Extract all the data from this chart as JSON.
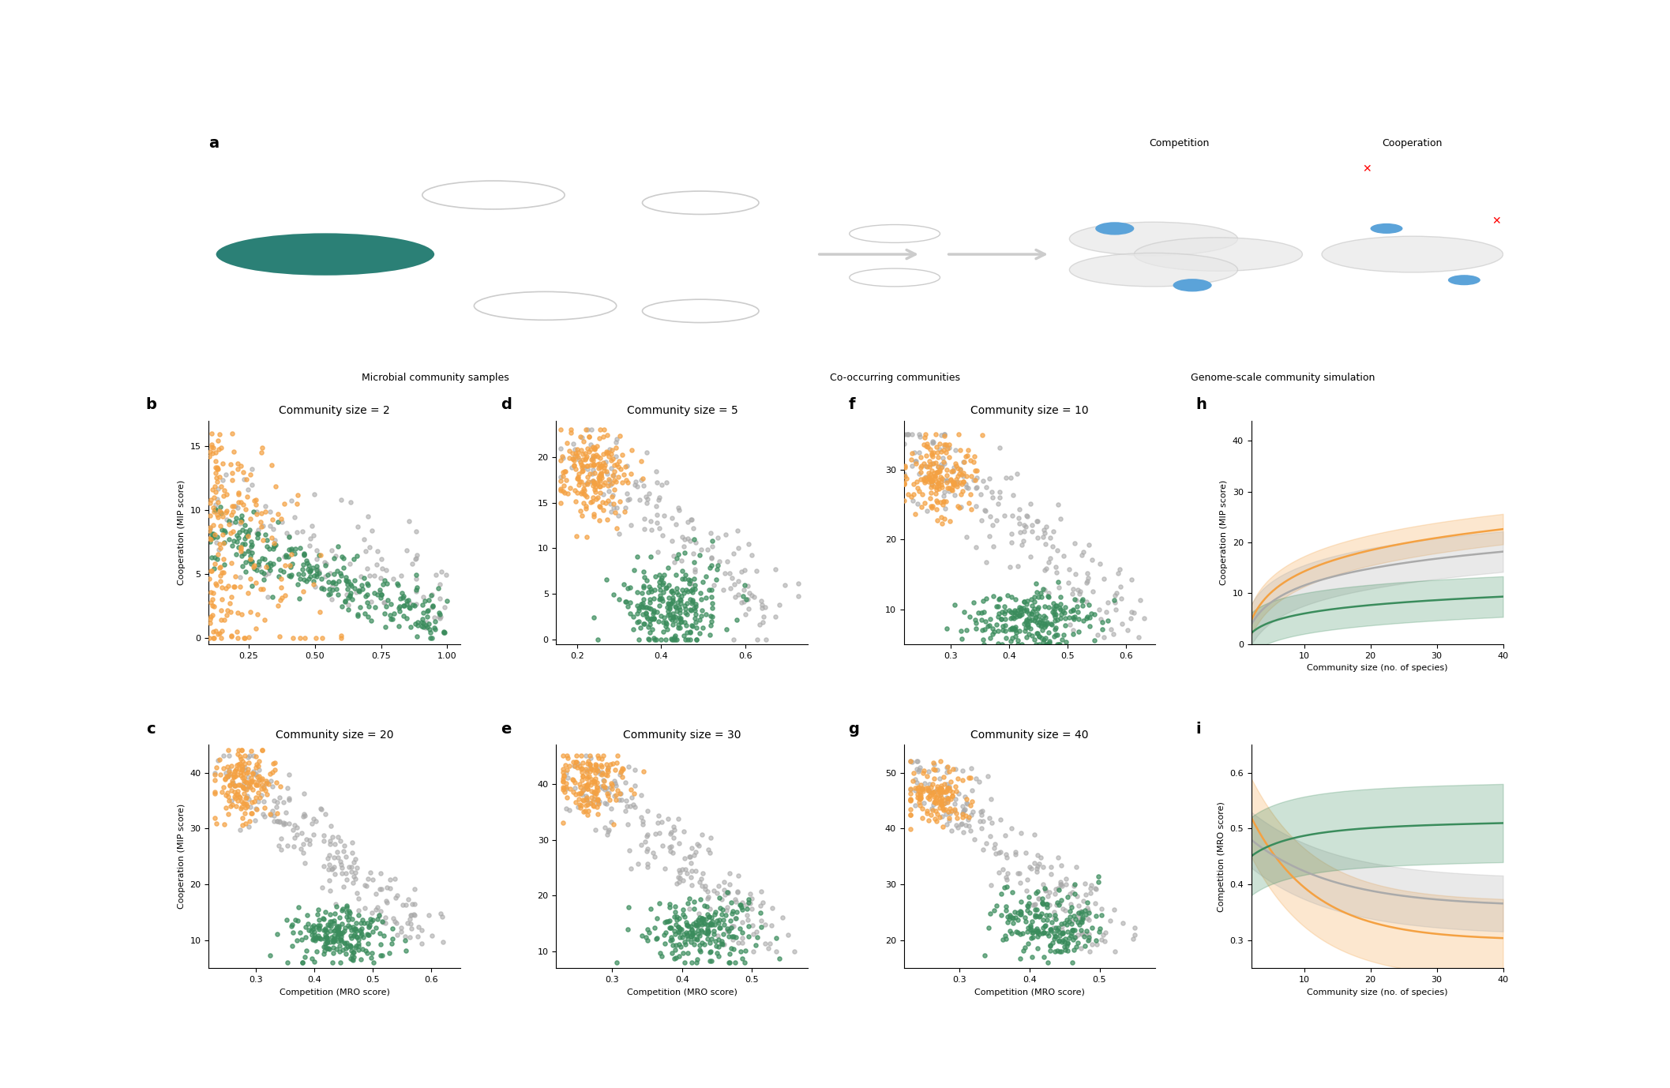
{
  "colors": {
    "orange": "#F4A142",
    "green": "#3A8C5C",
    "gray": "#AAAAAA",
    "light_orange": "#F4A142",
    "light_green": "#7BBF96",
    "teal": "#2B8076"
  },
  "panel_b": {
    "title": "Community size = 2",
    "xlabel": "Competition (MRO score)",
    "ylabel": "Cooperation (MIP score)",
    "xlim": [
      0.1,
      1.05
    ],
    "ylim": [
      -0.5,
      17
    ],
    "xticks": [
      0.25,
      0.5,
      0.75,
      1.0
    ],
    "yticks": [
      0,
      5,
      10,
      15
    ]
  },
  "panel_c": {
    "title": "Community size = 20",
    "xlabel": "Competition (MRO score)",
    "ylabel": "Cooperation (MIP score)",
    "xlim": [
      0.22,
      0.65
    ],
    "ylim": [
      5,
      45
    ],
    "xticks": [
      0.3,
      0.4,
      0.5,
      0.6
    ],
    "yticks": [
      10,
      20,
      30,
      40
    ]
  },
  "panel_d": {
    "title": "Community size = 5",
    "xlabel": "Competition (MRO score)",
    "ylabel": "Cooperation (MIP score)",
    "xlim": [
      0.15,
      0.75
    ],
    "ylim": [
      -0.5,
      24
    ],
    "xticks": [
      0.2,
      0.4,
      0.6
    ],
    "yticks": [
      0,
      5,
      10,
      15,
      20
    ]
  },
  "panel_e": {
    "title": "Community size = 30",
    "xlabel": "Competition (MRO score)",
    "ylabel": "Cooperation (MIP score)",
    "xlim": [
      0.22,
      0.58
    ],
    "ylim": [
      7,
      47
    ],
    "xticks": [
      0.3,
      0.4,
      0.5
    ],
    "yticks": [
      10,
      20,
      30,
      40
    ]
  },
  "panel_f": {
    "title": "Community size = 10",
    "xlabel": "Competition (MRO score)",
    "ylabel": "Cooperation (MIP score)",
    "xlim": [
      0.22,
      0.65
    ],
    "ylim": [
      5,
      37
    ],
    "xticks": [
      0.3,
      0.4,
      0.5,
      0.6
    ],
    "yticks": [
      10,
      20,
      30
    ]
  },
  "panel_g": {
    "title": "Community size = 40",
    "xlabel": "Competition (MRO score)",
    "ylabel": "Cooperation (MIP score)",
    "xlim": [
      0.22,
      0.58
    ],
    "ylim": [
      15,
      55
    ],
    "xticks": [
      0.3,
      0.4,
      0.5
    ],
    "yticks": [
      20,
      30,
      40,
      50
    ]
  },
  "panel_h": {
    "title": "",
    "xlabel": "Community size (no. of species)",
    "ylabel": "Cooperation (MIP score)",
    "xlim": [
      2,
      40
    ],
    "ylim": [
      0,
      44
    ],
    "xticks": [
      10,
      20,
      30,
      40
    ],
    "yticks": [
      0,
      10,
      20,
      30,
      40
    ]
  },
  "panel_i": {
    "title": "",
    "xlabel": "Community size (no. of species)",
    "ylabel": "Competition (MRO score)",
    "xlim": [
      2,
      40
    ],
    "ylim": [
      0.25,
      0.65
    ],
    "xticks": [
      10,
      20,
      30,
      40
    ],
    "yticks": [
      0.3,
      0.4,
      0.5,
      0.6
    ]
  }
}
